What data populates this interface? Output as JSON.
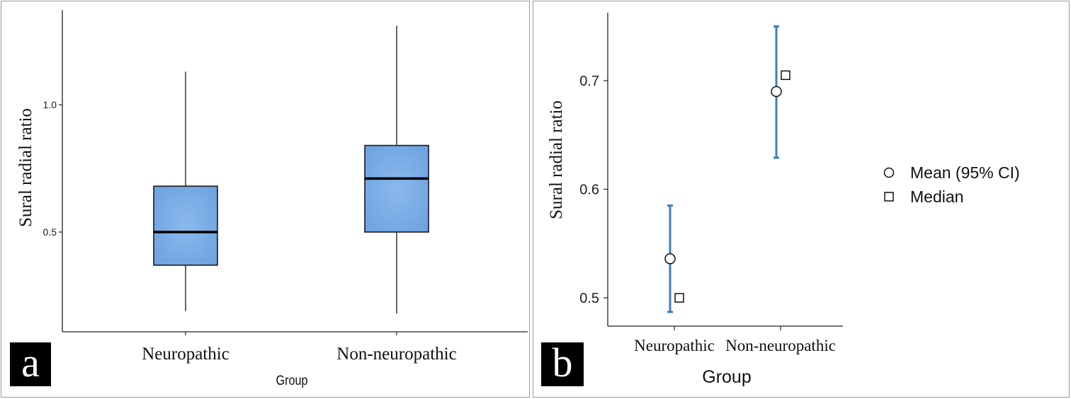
{
  "panels": {
    "a": {
      "letter": "a"
    },
    "b": {
      "letter": "b"
    }
  },
  "colors": {
    "box_fill": "#6ba1e0",
    "box_edge": "#1a1a1a",
    "ci_line": "#3c7fc0",
    "axis": "#222222"
  },
  "chart_data": [
    {
      "type": "box",
      "panel": "a",
      "xlabel": "Group",
      "ylabel": "Sural radial ratio",
      "categories": [
        "Neuropathic",
        "Non-neuropathic"
      ],
      "y_ticks": [
        0.5,
        1.0
      ],
      "y_tick_labels": [
        "0.5",
        "1.0"
      ],
      "ylim": [
        0.17,
        1.35
      ],
      "boxes": [
        {
          "category": "Neuropathic",
          "whisker_low": 0.19,
          "q1": 0.37,
          "median": 0.5,
          "q3": 0.68,
          "whisker_high": 1.13
        },
        {
          "category": "Non-neuropathic",
          "whisker_low": 0.18,
          "q1": 0.5,
          "median": 0.71,
          "q3": 0.84,
          "whisker_high": 1.31
        }
      ]
    },
    {
      "type": "scatter",
      "panel": "b",
      "xlabel": "Group",
      "ylabel": "Sural radial ratio",
      "categories": [
        "Neuropathic",
        "Non-neuropathic"
      ],
      "y_ticks": [
        0.5,
        0.6,
        0.7
      ],
      "y_tick_labels": [
        "0.5",
        "0.6",
        "0.7"
      ],
      "ylim": [
        0.475,
        0.765
      ],
      "legend": [
        "Mean (95% CI)",
        "Median"
      ],
      "legend_position": "right",
      "series": [
        {
          "name": "Mean (95% CI)",
          "values": [
            0.536,
            0.69
          ],
          "ci_low": [
            0.487,
            0.629
          ],
          "ci_high": [
            0.585,
            0.75
          ]
        },
        {
          "name": "Median",
          "values": [
            0.5,
            0.705
          ]
        }
      ]
    }
  ]
}
